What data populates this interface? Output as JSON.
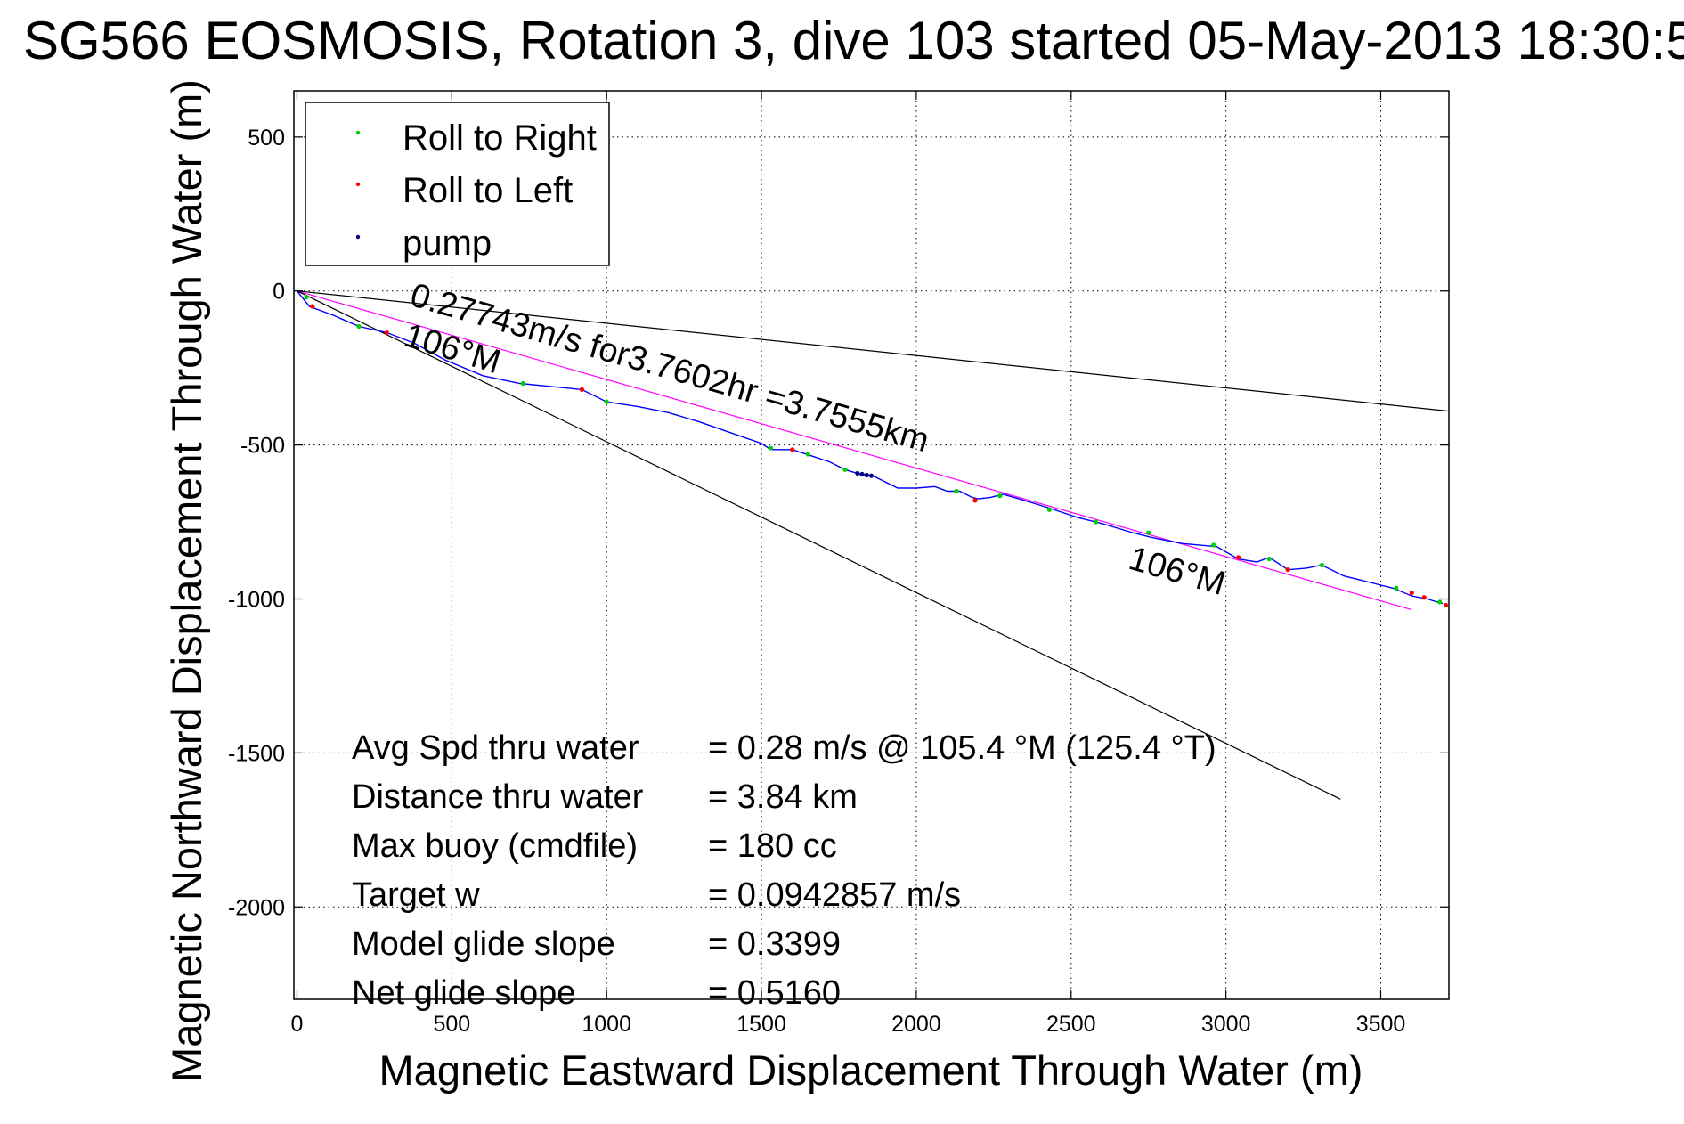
{
  "chart_data": {
    "type": "line",
    "title": "SG566 EOSMOSIS, Rotation 3, dive 103 started 05-May-2013 18:30:5",
    "xlabel": "Magnetic Eastward Displacement Through Water (m)",
    "ylabel": "Magnetic Northward Displacement Through Water (m)",
    "xlim": [
      -10,
      3720
    ],
    "ylim": [
      -2300,
      650
    ],
    "xticks": [
      0,
      500,
      1000,
      1500,
      2000,
      2500,
      3000,
      3500
    ],
    "yticks": [
      500,
      0,
      -500,
      -1000,
      -1500,
      -2000
    ],
    "grid": true,
    "legend_position": "top-left",
    "legend": [
      {
        "label": "Roll to Right",
        "color": "#00d000"
      },
      {
        "label": "Roll to Left",
        "color": "#ff0000"
      },
      {
        "label": "pump",
        "color": "#000080"
      }
    ],
    "series": [
      {
        "kind": "track",
        "color": "#0000ff",
        "x": [
          0,
          40,
          120,
          200,
          290,
          380,
          480,
          600,
          720,
          820,
          920,
          1000,
          1100,
          1200,
          1300,
          1400,
          1500,
          1530,
          1600,
          1660,
          1720,
          1770,
          1820,
          1860,
          1900,
          1940,
          2000,
          2060,
          2100,
          2140,
          2180,
          2200,
          2240,
          2280,
          2350,
          2430,
          2520,
          2600,
          2700,
          2760,
          2860,
          2970,
          3040,
          3100,
          3140,
          3200,
          3260,
          3310,
          3380,
          3460,
          3540,
          3600,
          3650,
          3700
        ],
        "y": [
          0,
          -50,
          -80,
          -115,
          -135,
          -170,
          -225,
          -275,
          -300,
          -310,
          -320,
          -360,
          -375,
          -395,
          -425,
          -460,
          -495,
          -515,
          -515,
          -535,
          -555,
          -580,
          -595,
          -600,
          -620,
          -640,
          -640,
          -635,
          -650,
          -650,
          -670,
          -675,
          -670,
          -660,
          -680,
          -705,
          -735,
          -755,
          -785,
          -800,
          -820,
          -830,
          -870,
          -880,
          -865,
          -905,
          -900,
          -890,
          -925,
          -945,
          -965,
          -990,
          -1000,
          -1015
        ]
      },
      {
        "kind": "fit",
        "color": "#ff00ff",
        "x": [
          0,
          3600
        ],
        "y": [
          0,
          -1035
        ]
      },
      {
        "kind": "reference",
        "color": "#000000",
        "x": [
          0,
          3720
        ],
        "y": [
          0,
          -390
        ]
      },
      {
        "kind": "reference",
        "color": "#000000",
        "x": [
          0,
          3370
        ],
        "y": [
          0,
          -1650
        ]
      }
    ],
    "points": {
      "roll_right": {
        "x": [
          30,
          200,
          730,
          1000,
          1530,
          1650,
          1770,
          2130,
          2270,
          2430,
          2580,
          2750,
          2960,
          3140,
          3310,
          3550,
          3690
        ],
        "y": [
          -20,
          -115,
          -300,
          -360,
          -510,
          -530,
          -580,
          -650,
          -665,
          -710,
          -750,
          -785,
          -825,
          -870,
          -890,
          -965,
          -1010
        ]
      },
      "roll_left": {
        "x": [
          50,
          290,
          920,
          1600,
          2190,
          3040,
          3200,
          3600,
          3640,
          3710
        ],
        "y": [
          -50,
          -135,
          -320,
          -515,
          -680,
          -865,
          -905,
          -980,
          -995,
          -1020
        ]
      },
      "pump": {
        "x": [
          1810,
          1825,
          1840,
          1855
        ],
        "y": [
          -592,
          -595,
          -598,
          -600
        ]
      }
    },
    "annotations": [
      {
        "text": "0.27743m/s for3.7602hr =3.7555km",
        "x": 360,
        "y": -45,
        "angle": 15.9
      },
      {
        "text": "106°M",
        "x": 340,
        "y": -175,
        "angle": 17
      },
      {
        "text": "106°M",
        "x": 2680,
        "y": -900,
        "angle": 16
      }
    ],
    "stats": [
      {
        "label": "Avg Spd thru water",
        "value": "=  0.28 m/s @ 105.4 °M (125.4 °T)"
      },
      {
        "label": "Distance thru water",
        "value": "=  3.84 km"
      },
      {
        "label": "Max buoy (cmdfile)",
        "value": "= 180 cc"
      },
      {
        "label": "Target w",
        "value": "= 0.0942857 m/s"
      },
      {
        "label": "Model glide slope",
        "value": "= 0.3399"
      },
      {
        "label": "Net glide slope",
        "value": "= 0.5160"
      }
    ]
  }
}
